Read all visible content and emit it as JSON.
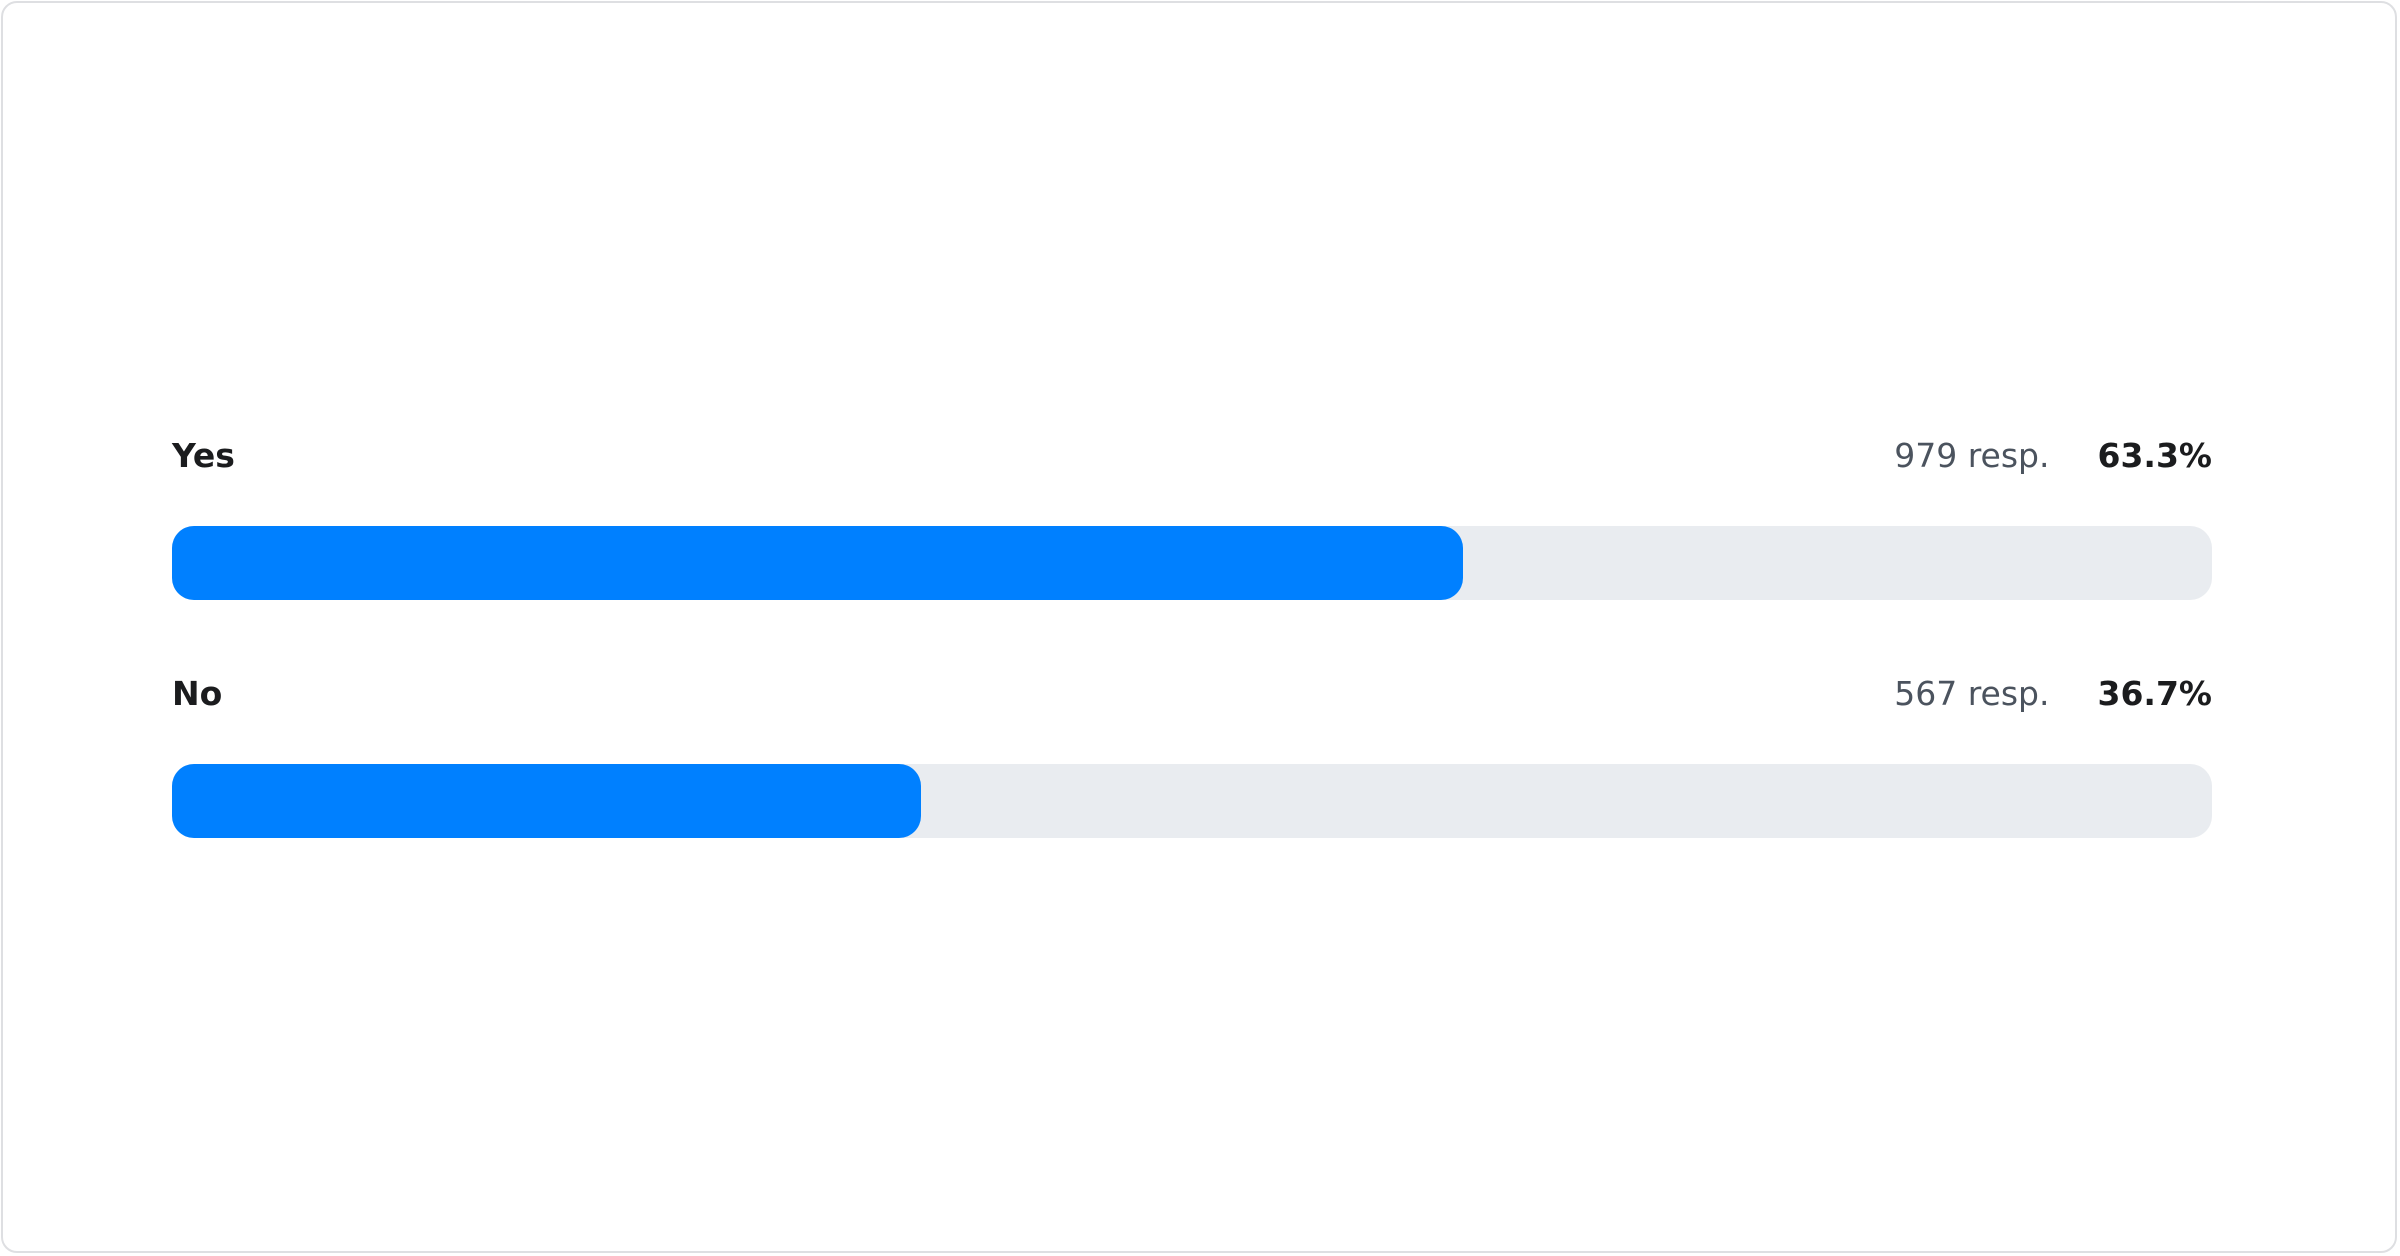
{
  "chart_data": {
    "type": "bar",
    "orientation": "horizontal",
    "categories": [
      "Yes",
      "No"
    ],
    "values": [
      63.3,
      36.7
    ],
    "responses": [
      979,
      567
    ],
    "count_labels": [
      "979 resp.",
      "567 resp."
    ],
    "percent_labels": [
      "63.3%",
      "36.7%"
    ],
    "xlim": [
      0,
      100
    ],
    "grid": false,
    "colors": {
      "fill": "#0080ff",
      "track": "#e9ecf0"
    }
  }
}
